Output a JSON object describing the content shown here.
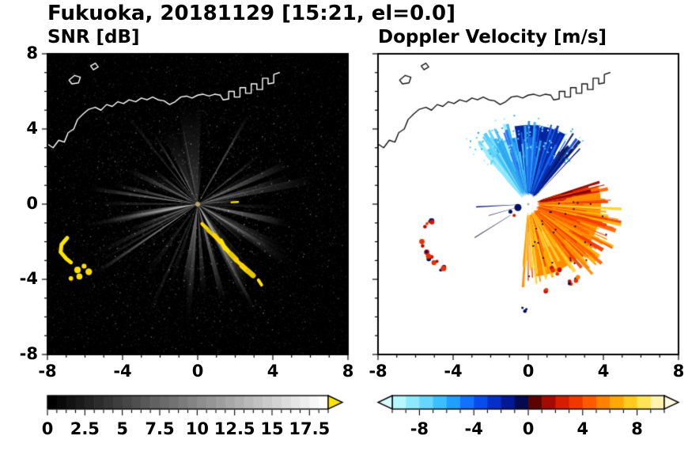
{
  "figure": {
    "title": "Fukuoka, 20181129 [15:21, el=0.0]"
  },
  "chart_data": [
    {
      "type": "heatmap",
      "title": "SNR [dB]",
      "xlim": [
        -8,
        8
      ],
      "ylim": [
        -8,
        8
      ],
      "xticks": [
        -8,
        -4,
        0,
        4,
        8
      ],
      "yticks": [
        8,
        4,
        0,
        -4,
        -8
      ],
      "colorbar": {
        "range": [
          0,
          18.75
        ],
        "labels": [
          0,
          2.5,
          5,
          7.5,
          10,
          12.5,
          15,
          17.5
        ],
        "colormap": "black-to-white grayscale",
        "over": "#ffe400"
      },
      "style": {
        "background": "#000000",
        "coast_color": "#ffffff",
        "beam_color": "#ffffff",
        "clutter_colors": [
          "#ffe400",
          "#ffd400",
          "#fff06e",
          "#e6c800"
        ]
      },
      "clutter": {
        "chain_se": [
          [
            0.25,
            -1.05
          ],
          [
            0.55,
            -1.35
          ],
          [
            0.9,
            -1.7
          ],
          [
            1.2,
            -2.0
          ],
          [
            1.45,
            -2.35
          ],
          [
            1.75,
            -2.65
          ],
          [
            2.05,
            -2.95
          ],
          [
            2.35,
            -3.25
          ],
          [
            2.65,
            -3.55
          ],
          [
            2.95,
            -3.8
          ],
          [
            3.2,
            -4.05
          ],
          [
            3.4,
            -4.3
          ]
        ],
        "west_arc": [
          [
            -6.95,
            -1.8
          ],
          [
            -7.25,
            -2.15
          ],
          [
            -7.3,
            -2.55
          ],
          [
            -7.0,
            -2.9
          ],
          [
            -6.75,
            -3.1
          ]
        ],
        "west_dots": [
          [
            -6.4,
            -3.5
          ],
          [
            -6.05,
            -3.3
          ],
          [
            -6.75,
            -3.95
          ],
          [
            -6.3,
            -3.85
          ],
          [
            -5.8,
            -3.6
          ]
        ],
        "east_dash": [
          [
            1.8,
            0.1
          ],
          [
            2.15,
            0.12
          ]
        ]
      },
      "description": "Radar PPI of signal-to-noise ratio: dark speckled noise background, bright white radial beams emanating from the radar at the origin, high-SNR yellow ground clutter arc running southeast from (0.3,-1.1) to (3.4,-4.3), yellow clutter patches west near (-7,-2) to (-6,-4), coastline drawn in white across the north."
    },
    {
      "type": "heatmap",
      "title": "Doppler Velocity [m/s]",
      "xlim": [
        -8,
        8
      ],
      "ylim": [
        -8,
        8
      ],
      "xticks": [
        -8,
        -4,
        0,
        4,
        8
      ],
      "yticks": [
        8,
        4,
        0,
        -4,
        -8
      ],
      "colorbar": {
        "range": [
          -10,
          10
        ],
        "labels": [
          -8,
          -4,
          0,
          4,
          8
        ],
        "under": "#d8fcff",
        "over": "#fffbe0",
        "stops": [
          [
            -10,
            "#c8ffff"
          ],
          [
            -8,
            "#7ae0ff"
          ],
          [
            -6,
            "#28b4ff"
          ],
          [
            -4,
            "#0a5aff"
          ],
          [
            -2,
            "#0320b4"
          ],
          [
            -0.2,
            "#02063c"
          ],
          [
            0.2,
            "#460000"
          ],
          [
            2,
            "#c80f00"
          ],
          [
            4,
            "#ff4600"
          ],
          [
            6,
            "#ff9600"
          ],
          [
            8,
            "#ffdc28"
          ],
          [
            10,
            "#fffadc"
          ]
        ]
      },
      "style": {
        "background": "#ffffff",
        "coast_color": "#141414",
        "hole_color": "#ffffff",
        "blue_palette": [
          "#9ceeff",
          "#5ad2ff",
          "#2da8f0",
          "#1e6ef0",
          "#0a3cd2",
          "#0626a0",
          "#04145f"
        ],
        "warm_palette": [
          "#ffd23c",
          "#ffb400",
          "#ff8c00",
          "#ff6400",
          "#f03c00",
          "#d21e00",
          "#8c0000"
        ]
      },
      "clutter": {
        "west": [
          [
            -5.2,
            -0.9
          ],
          [
            -5.45,
            -1.1
          ],
          [
            -5.6,
            -2.1
          ],
          [
            -5.5,
            -2.5
          ],
          [
            -5.25,
            -2.85
          ],
          [
            -4.9,
            -3.15
          ],
          [
            -4.6,
            -3.4
          ]
        ],
        "south": [
          [
            1.35,
            -3.45
          ],
          [
            1.6,
            -3.6
          ],
          [
            2.3,
            -4.15
          ],
          [
            2.6,
            -3.95
          ],
          [
            1.05,
            -4.6
          ]
        ],
        "south_center": [
          [
            -0.2,
            -5.6
          ]
        ]
      },
      "description": "Radar PPI of Doppler velocity: fan of negative velocities (cyan to dark blue, toward radar) north of the radar out to ~4.5 km, fan of positive velocities (orange, red, yellow, away from radar) east-southeast out to ~5 km, small red/navy clutter patches west near (-5,-1) to (-4.5,-3.5) and south near (1.5,-3.5) to (2.5,-4), coastline drawn in black across the north."
    }
  ],
  "coastline": {
    "main": [
      [
        -8.0,
        3.2
      ],
      [
        -7.7,
        3.0
      ],
      [
        -7.4,
        3.4
      ],
      [
        -7.1,
        3.3
      ],
      [
        -6.9,
        3.8
      ],
      [
        -6.6,
        4.0
      ],
      [
        -6.4,
        4.5
      ],
      [
        -6.1,
        4.8
      ],
      [
        -5.8,
        5.05
      ],
      [
        -5.45,
        5.15
      ],
      [
        -5.15,
        5.0
      ],
      [
        -4.85,
        5.3
      ],
      [
        -4.55,
        5.2
      ],
      [
        -4.25,
        5.45
      ],
      [
        -3.95,
        5.35
      ],
      [
        -3.65,
        5.55
      ],
      [
        -3.3,
        5.45
      ],
      [
        -3.0,
        5.65
      ],
      [
        -2.7,
        5.55
      ],
      [
        -2.4,
        5.7
      ],
      [
        -2.1,
        5.55
      ],
      [
        -1.8,
        5.5
      ],
      [
        -1.5,
        5.3
      ],
      [
        -1.2,
        5.45
      ],
      [
        -0.9,
        5.7
      ],
      [
        -0.6,
        5.75
      ],
      [
        -0.3,
        5.65
      ],
      [
        0.0,
        5.8
      ],
      [
        0.3,
        5.85
      ],
      [
        0.6,
        5.75
      ],
      [
        0.9,
        5.85
      ],
      [
        1.2,
        5.8
      ],
      [
        1.35,
        5.55
      ],
      [
        1.65,
        5.6
      ],
      [
        1.65,
        6.0
      ],
      [
        1.95,
        6.0
      ],
      [
        1.95,
        5.7
      ],
      [
        2.25,
        5.7
      ],
      [
        2.25,
        6.2
      ],
      [
        2.55,
        6.2
      ],
      [
        2.55,
        5.9
      ],
      [
        2.85,
        5.9
      ],
      [
        2.85,
        6.4
      ],
      [
        3.15,
        6.4
      ],
      [
        3.15,
        6.1
      ],
      [
        3.45,
        6.1
      ],
      [
        3.45,
        6.7
      ],
      [
        3.75,
        6.7
      ],
      [
        3.75,
        6.4
      ],
      [
        4.05,
        6.45
      ],
      [
        4.05,
        6.9
      ],
      [
        4.35,
        7.0
      ]
    ],
    "islands": [
      [
        [
          -6.85,
          6.6
        ],
        [
          -6.55,
          6.85
        ],
        [
          -6.25,
          6.75
        ],
        [
          -6.35,
          6.45
        ],
        [
          -6.7,
          6.4
        ]
      ],
      [
        [
          -5.7,
          7.35
        ],
        [
          -5.45,
          7.5
        ],
        [
          -5.3,
          7.3
        ],
        [
          -5.55,
          7.15
        ]
      ]
    ]
  }
}
